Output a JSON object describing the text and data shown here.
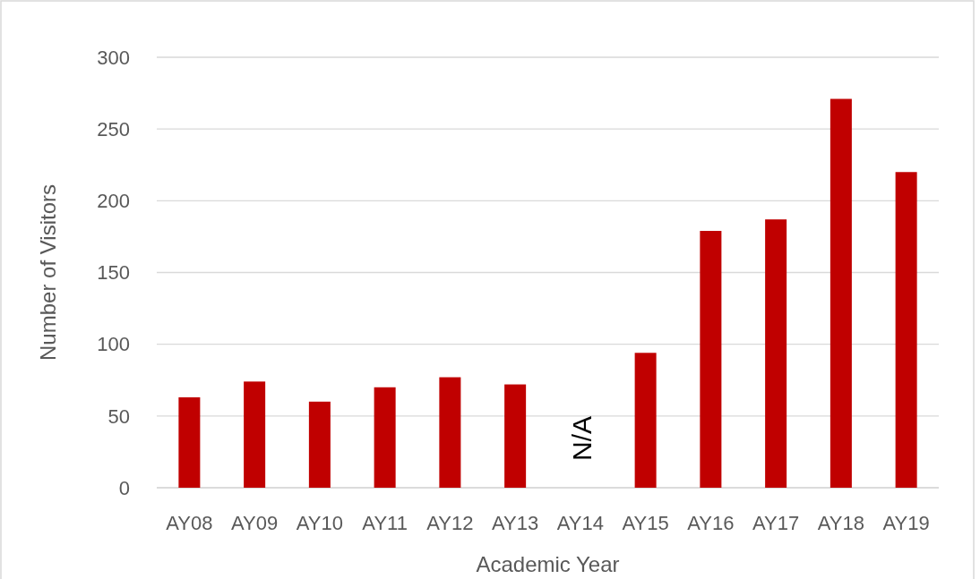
{
  "chart_data": {
    "type": "bar",
    "xlabel": "Academic Year",
    "ylabel": "Number of Visitors",
    "categories": [
      "AY08",
      "AY09",
      "AY10",
      "AY11",
      "AY12",
      "AY13",
      "AY14",
      "AY15",
      "AY16",
      "AY17",
      "AY18",
      "AY19"
    ],
    "values": [
      63,
      74,
      60,
      70,
      77,
      72,
      null,
      94,
      179,
      187,
      271,
      220
    ],
    "color": "#c00000",
    "ylim": [
      0,
      300
    ],
    "yticks": [
      0,
      50,
      100,
      150,
      200,
      250,
      300
    ],
    "grid": "y",
    "annotations": [
      "N/A"
    ]
  }
}
